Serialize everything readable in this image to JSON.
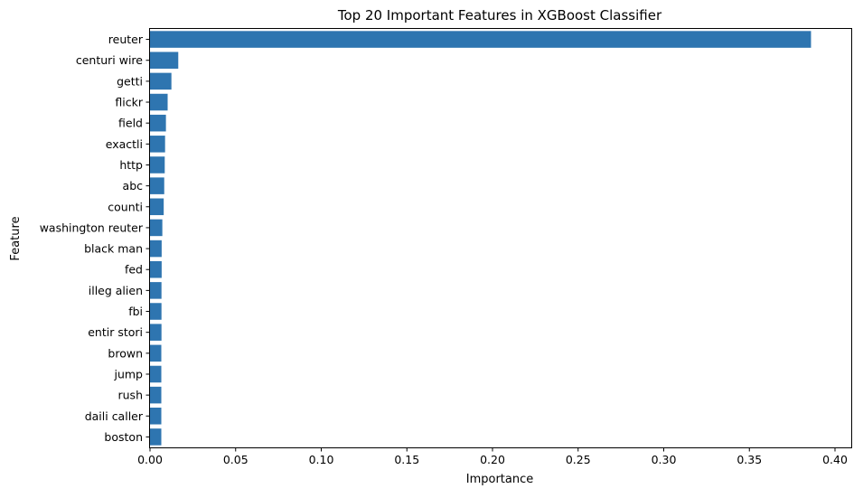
{
  "chart_data": {
    "type": "bar",
    "orientation": "horizontal",
    "title": "Top 20 Important Features in XGBoost Classifier",
    "xlabel": "Importance",
    "ylabel": "Feature",
    "xlim": [
      0,
      0.4095
    ],
    "xticks": [
      "0.00",
      "0.05",
      "0.10",
      "0.15",
      "0.20",
      "0.25",
      "0.30",
      "0.35",
      "0.40"
    ],
    "grid": false,
    "bar_color": "#2e75b0",
    "categories": [
      "reuter",
      "centuri wire",
      "getti",
      "flickr",
      "field",
      "exactli",
      "http",
      "abc",
      "counti",
      "washington reuter",
      "black man",
      "fed",
      "illeg alien",
      "fbi",
      "entir stori",
      "brown",
      "jump",
      "rush",
      "daili caller",
      "boston"
    ],
    "values": [
      0.386,
      0.0165,
      0.0125,
      0.0103,
      0.0093,
      0.0088,
      0.0086,
      0.0083,
      0.008,
      0.0072,
      0.0068,
      0.0068,
      0.0067,
      0.0067,
      0.0067,
      0.0066,
      0.0066,
      0.0066,
      0.0066,
      0.0066
    ]
  }
}
